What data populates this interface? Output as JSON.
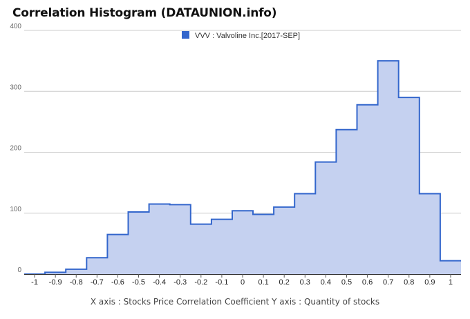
{
  "chart_data": {
    "type": "area",
    "title": "Correlation Histogram (DATAUNION.info)",
    "footer": "X axis : Stocks Price Correlation Coefficient  Y axis : Quantity of stocks",
    "legend": {
      "label": "VVV : Valvoline Inc.[2017-SEP]",
      "placement": "top-center"
    },
    "series": [
      {
        "name": "VVV : Valvoline Inc.[2017-SEP]",
        "color": "#3366cc",
        "fill_color": "#c5d1f0",
        "x": [
          -1,
          -0.9,
          -0.8,
          -0.7,
          -0.6,
          -0.5,
          -0.4,
          -0.3,
          -0.2,
          -0.1,
          0,
          0.1,
          0.2,
          0.3,
          0.4,
          0.5,
          0.6,
          0.7,
          0.8,
          0.9,
          1
        ],
        "values": [
          0,
          3,
          8,
          27,
          65,
          102,
          115,
          114,
          82,
          90,
          104,
          98,
          110,
          132,
          184,
          237,
          278,
          350,
          290,
          132,
          22
        ]
      }
    ],
    "xticks": [
      "-1",
      "-0.9",
      "-0.8",
      "-0.7",
      "-0.6",
      "-0.5",
      "-0.4",
      "-0.3",
      "-0.2",
      "-0.1",
      "0",
      "0.1",
      "0.2",
      "0.3",
      "0.4",
      "0.5",
      "0.6",
      "0.7",
      "0.8",
      "0.9",
      "1"
    ],
    "yticks": [
      "0",
      "100",
      "200",
      "300",
      "400"
    ],
    "xlim": [
      -1.05,
      1.05
    ],
    "ylim": [
      0,
      400
    ],
    "grid": true
  }
}
